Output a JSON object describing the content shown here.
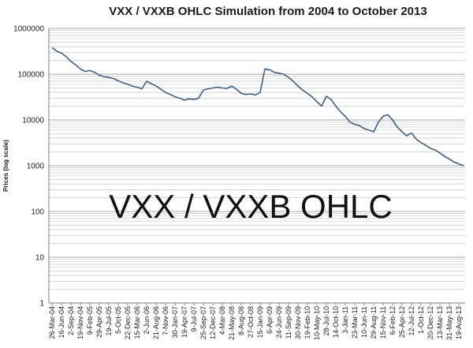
{
  "chart_data": {
    "type": "line",
    "title": "VXX / VXXB  OHLC Simulation from 2004 to October 2013",
    "ylabel": "Prices (log scale)",
    "xlabel": "",
    "yscale": "log",
    "ylim": [
      1,
      1000000
    ],
    "yticks": [
      "1000000",
      "100000",
      "10000",
      "1000",
      "100",
      "10",
      "1"
    ],
    "grid": true,
    "legend": "none",
    "annotation": "VXX / VXXB OHLC",
    "color": "#3d5f8a",
    "xticks": [
      "26-Mar-04",
      "16-Jun-04",
      "2-Sep-04",
      "19-Nov-04",
      "9-Feb-05",
      "29-Apr-05",
      "19-Jul-05",
      "5-Oct-05",
      "22-Dec-05",
      "15-Mar-06",
      "2-Jun-06",
      "21-Aug-06",
      "7-Nov-06",
      "30-Jan-07",
      "19-Apr-07",
      "9-Jul-07",
      "25-Sep-07",
      "12-Dec-07",
      "4-Mar-08",
      "21-May-08",
      "8-Aug-08",
      "27-Oct-08",
      "15-Jan-09",
      "6-Apr-09",
      "24-Jun-09",
      "11-Sep-09",
      "30-Nov-09",
      "19-Feb-10",
      "10-May-10",
      "28-Jul-10",
      "14-Oct-10",
      "3-Jan-11",
      "23-Mar-11",
      "10-Jun-11",
      "29-Aug-11",
      "15-Nov-11",
      "6-Feb-12",
      "25-Apr-12",
      "12-Jul-12",
      "1-Oct-12",
      "20-Dec-12",
      "13-Mar-13",
      "31-May-13",
      "19-Aug-13"
    ],
    "x": [
      0,
      0.5,
      1,
      1.5,
      2,
      2.5,
      3,
      3.5,
      4,
      4.5,
      5,
      5.5,
      6,
      6.5,
      7,
      7.5,
      8,
      8.5,
      9,
      9.5,
      10,
      10.5,
      11,
      11.5,
      12,
      12.5,
      13,
      13.5,
      14,
      14.5,
      15,
      15.5,
      16,
      16.5,
      17,
      17.5,
      18,
      18.5,
      19,
      19.5,
      20,
      20.5,
      21,
      21.5,
      22,
      22.5,
      23,
      23.5,
      24,
      24.5,
      25,
      25.5,
      26,
      26.5,
      27,
      27.5,
      28,
      28.5,
      29,
      29.5,
      30,
      30.5,
      31,
      31.5,
      32,
      32.5,
      33,
      33.5,
      34,
      34.5,
      35,
      35.5,
      36,
      36.5,
      37,
      37.5,
      38,
      38.5,
      39,
      39.5,
      40,
      40.5,
      41,
      41.5,
      42,
      42.5,
      43,
      43.5
    ],
    "values": [
      380000,
      320000,
      290000,
      240000,
      190000,
      160000,
      130000,
      115000,
      120000,
      110000,
      95000,
      88000,
      85000,
      80000,
      72000,
      65000,
      60000,
      55000,
      52000,
      48000,
      70000,
      62000,
      55000,
      47000,
      40000,
      36000,
      32000,
      30000,
      27000,
      29000,
      28000,
      30000,
      45000,
      48000,
      50000,
      52000,
      50000,
      49000,
      55000,
      47000,
      38000,
      36000,
      37000,
      35000,
      40000,
      130000,
      125000,
      110000,
      105000,
      100000,
      85000,
      70000,
      55000,
      45000,
      38000,
      32000,
      25000,
      20000,
      33000,
      28000,
      20000,
      15000,
      12000,
      9000,
      8000,
      7500,
      6500,
      6000,
      5500,
      9000,
      12000,
      13000,
      10000,
      7000,
      5500,
      4500,
      5200,
      3800,
      3200,
      2800,
      2400,
      2200,
      1900,
      1600,
      1400,
      1200,
      1100,
      1000
    ]
  }
}
